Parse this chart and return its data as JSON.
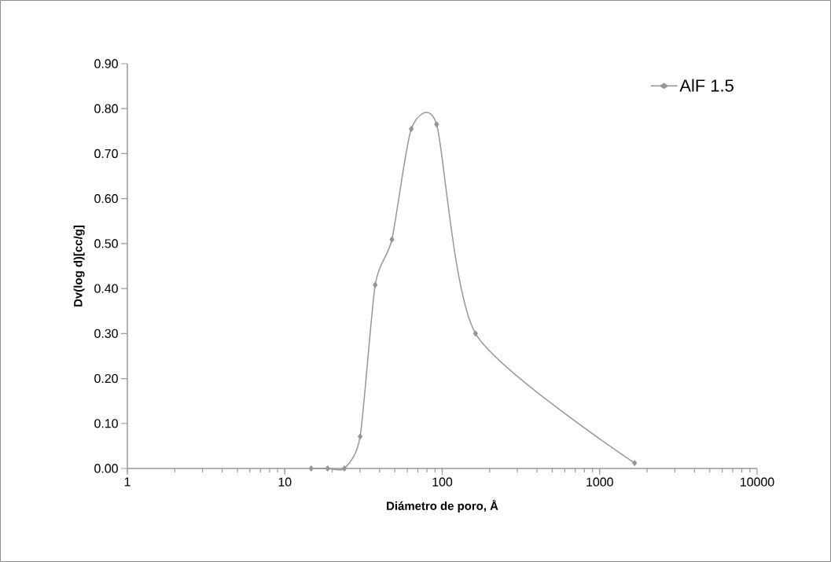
{
  "chart_data": {
    "type": "line",
    "xlabel": "Diámetro de poro, Å",
    "ylabel": "Dv(log d)[cc/g]",
    "x": [
      14.7,
      18.7,
      23.9,
      30.1,
      37.5,
      47.9,
      63.6,
      92.1,
      162.7,
      1667
    ],
    "series": [
      {
        "name": "AlF 1.5",
        "color": "#969696",
        "values": [
          0.0,
          0.0,
          0.0,
          0.071,
          0.408,
          0.509,
          0.755,
          0.765,
          0.3,
          0.012
        ]
      }
    ],
    "log": "x",
    "xlim": [
      1,
      10000
    ],
    "xticks": [
      1,
      10,
      100,
      1000,
      10000
    ],
    "ylim": [
      0,
      0.9
    ],
    "yticks": [
      {
        "value": 0,
        "label": "0.00"
      },
      {
        "value": 0.1,
        "label": "0.10"
      },
      {
        "value": 0.2,
        "label": "0.20"
      },
      {
        "value": 0.3,
        "label": "0.30"
      },
      {
        "value": 0.4,
        "label": "0.40"
      },
      {
        "value": 0.5,
        "label": "0.50"
      },
      {
        "value": 0.6,
        "label": "0.60"
      },
      {
        "value": 0.7,
        "label": "0.70"
      },
      {
        "value": 0.8,
        "label": "0.80"
      },
      {
        "value": 0.9,
        "label": "0.90"
      }
    ],
    "grid": false,
    "legend": "top right",
    "marker": "diamond",
    "line_style": "solid"
  }
}
